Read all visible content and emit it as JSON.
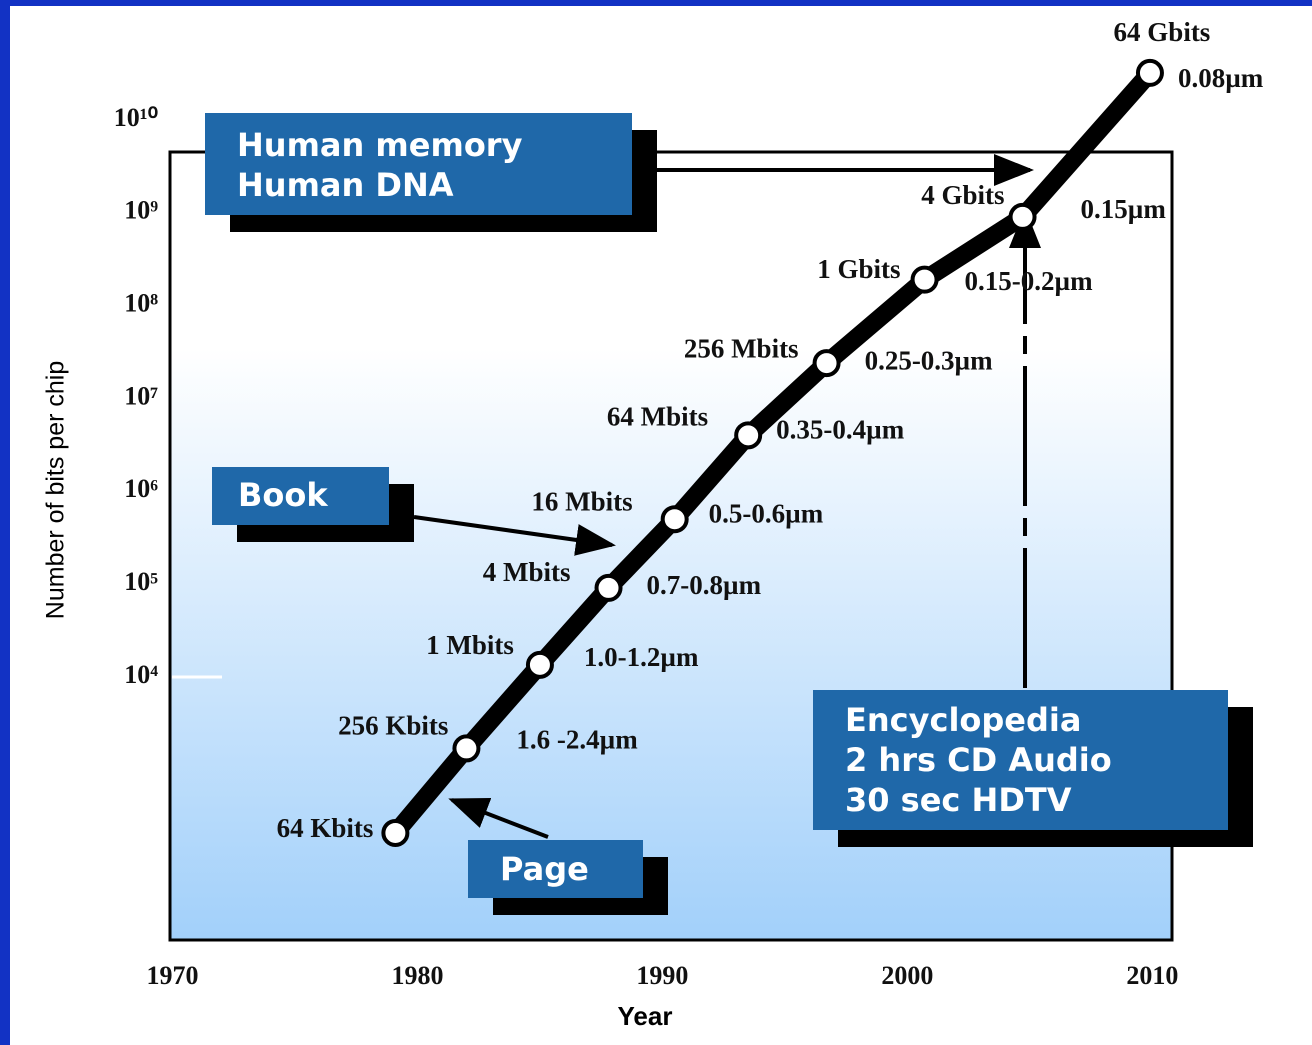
{
  "chart_data": {
    "type": "line",
    "log_y": true,
    "color": "#000000",
    "x_label": "Year",
    "y_label": "Number of bits per chip",
    "x": [
      1979.1,
      1982.0,
      1985.0,
      1987.8,
      1990.5,
      1993.5,
      1996.7,
      2000.7,
      2004.7,
      2009.9
    ],
    "values": [
      209,
      1700,
      13500,
      91000,
      500000,
      4000000,
      24000000,
      190000000,
      900000000,
      32000000000
    ],
    "bit_labels": [
      "64 Kbits",
      "256 Kbits",
      "1 Mbits",
      "4 Mbits",
      "16 Mbits",
      "64 Mbits",
      "256 Mbits",
      "1 Gbits",
      "4 Gbits",
      "64 Gbits"
    ],
    "feature_labels": [
      null,
      "1.6 -2.4µm",
      "1.0-1.2µm",
      "0.7-0.8µm",
      "0.5-0.6µm",
      "0.35-0.4µm",
      "0.25-0.3µm",
      "0.15-0.2µm",
      "0.15µm",
      "0.08µm"
    ],
    "xlim": [
      1969.9,
      2010.8
    ],
    "xticks": [
      1970,
      1980,
      1990,
      2000,
      2010
    ],
    "ylim": [
      14.7,
      4500000000
    ],
    "yticks": [
      {
        "value": 10000,
        "label": "10⁴"
      },
      {
        "value": 100000,
        "label": "10⁵"
      },
      {
        "value": 1000000,
        "label": "10⁶"
      },
      {
        "value": 10000000,
        "label": "10⁷"
      },
      {
        "value": 100000000,
        "label": "10⁸"
      },
      {
        "value": 1000000000,
        "label": "10⁹"
      },
      {
        "value": 10000000000,
        "label": "10¹⁰"
      }
    ],
    "callouts": [
      {
        "lines": [
          "Human memory",
          "Human DNA"
        ]
      },
      {
        "lines": [
          "Book"
        ]
      },
      {
        "lines": [
          "Page"
        ]
      },
      {
        "lines": [
          "Encyclopedia",
          "2 hrs CD Audio",
          "30 sec HDTV"
        ]
      }
    ]
  }
}
